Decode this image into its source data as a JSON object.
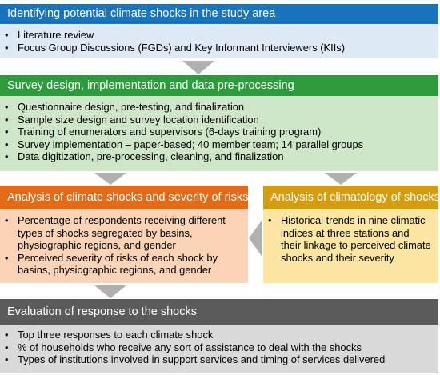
{
  "colors": {
    "blue_header": "#1874be",
    "blue_body": "#dde9f4",
    "green_header": "#2d9a3c",
    "green_body": "#cfe6c8",
    "orange_header": "#e36a17",
    "orange_body": "#fbd3b6",
    "gold_header": "#d49d10",
    "gold_body": "#fbe6a3",
    "gray_header": "#5b5b5b",
    "gray_body": "#dadada",
    "arrow": "#b0b0b0"
  },
  "box1": {
    "title": "Identifying potential climate shocks in the study area",
    "items": [
      "Literature review",
      "Focus Group Discussions (FGDs) and Key Informant Interviewers (KIIs)"
    ]
  },
  "box2": {
    "title": "Survey design, implementation and data pre-processing",
    "items": [
      "Questionnaire design, pre-testing, and finalization",
      "Sample size design and survey location identification",
      "Training of enumerators and supervisors (6-days training program)",
      "Survey implementation – paper-based; 40 member team; 14 parallel groups",
      "Data digitization,  pre-processing, cleaning, and finalization"
    ]
  },
  "box3": {
    "title": "Analysis of climate shocks and severity of risks",
    "items": [
      "Percentage of respondents receiving different types of shocks segregated by basins,  physiographic regions, and gender",
      "Perceived severity of risks of each shock by basins, physiographic regions, and gender"
    ]
  },
  "box4": {
    "title": "Analysis of climatology of shocks",
    "items": [
      "Historical trends in nine climatic indices at three stations and their linkage to perceived climate shocks and their severity"
    ]
  },
  "box5": {
    "title": "Evaluation of response to the shocks",
    "items": [
      "Top three responses to each climate shock",
      "% of households who receive any sort of assistance to deal with the shocks",
      "Types of institutions involved in support services and timing of services delivered"
    ]
  }
}
